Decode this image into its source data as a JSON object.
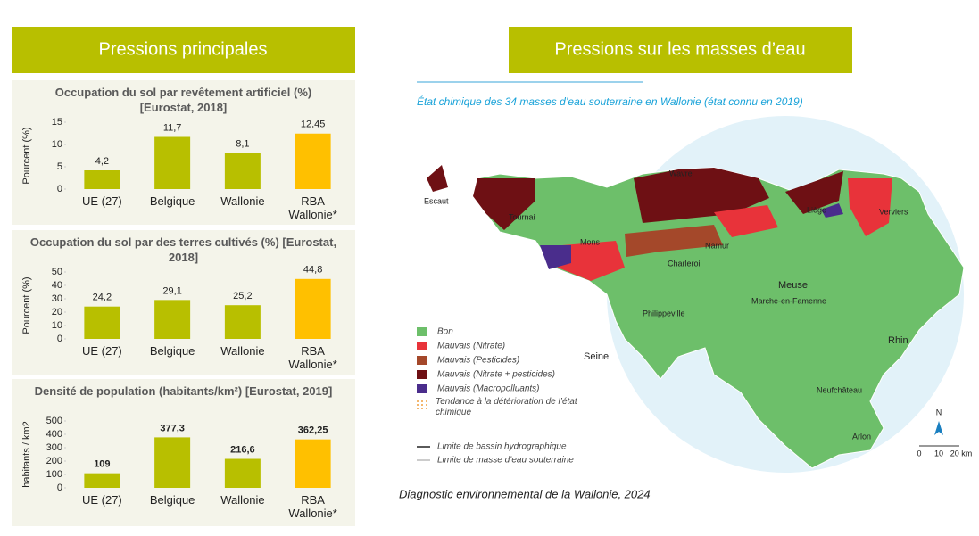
{
  "left_header": "Pressions principales",
  "right_header": "Pressions sur les masses d’eau",
  "chart_data": [
    {
      "type": "bar",
      "title": "Occupation du sol par revêtement artificiel (%) [Eurostat, 2018]",
      "y_label": "Pourcent (%)",
      "categories": [
        "UE (27)",
        "Belgique",
        "Wallonie",
        "RBA Wallonie*"
      ],
      "values": [
        4.2,
        11.7,
        8.1,
        12.45
      ],
      "value_labels": [
        "4,2",
        "11,7",
        "8,1",
        "12,45"
      ],
      "colors": [
        "#b8bf00",
        "#b8bf00",
        "#b8bf00",
        "#ffc000"
      ],
      "ylim": [
        0,
        15
      ],
      "yticks": [
        0,
        5,
        10,
        15
      ]
    },
    {
      "type": "bar",
      "title": "Occupation du sol par des terres cultivés (%) [Eurostat, 2018]",
      "y_label": "Pourcent (%)",
      "categories": [
        "UE (27)",
        "Belgique",
        "Wallonie",
        "RBA Wallonie*"
      ],
      "values": [
        24.2,
        29.1,
        25.2,
        44.8
      ],
      "value_labels": [
        "24,2",
        "29,1",
        "25,2",
        "44,8"
      ],
      "colors": [
        "#b8bf00",
        "#b8bf00",
        "#b8bf00",
        "#ffc000"
      ],
      "ylim": [
        0,
        50
      ],
      "yticks": [
        0,
        10,
        20,
        30,
        40,
        50
      ]
    },
    {
      "type": "bar",
      "title": "Densité de population (habitants/km²) [Eurostat, 2019]",
      "y_label": "habitants / km2",
      "categories": [
        "UE (27)",
        "Belgique",
        "Wallonie",
        "RBA Wallonie*"
      ],
      "values": [
        109,
        377.3,
        216.6,
        362.25
      ],
      "value_labels": [
        "109",
        "377,3",
        "216,6",
        "362,25"
      ],
      "colors": [
        "#b8bf00",
        "#b8bf00",
        "#b8bf00",
        "#ffc000"
      ],
      "ylim": [
        0,
        500
      ],
      "yticks": [
        0,
        100,
        200,
        300,
        400,
        500
      ]
    }
  ],
  "map": {
    "title": "État chimique des 34 masses d’eau souterraine en Wallonie (état connu en 2019)",
    "labels": [
      "Escaut",
      "Tournai",
      "Wavre",
      "Liège",
      "Verviers",
      "Mons",
      "Namur",
      "Charleroi",
      "Meuse",
      "Marche-en-Famenne",
      "Philippeville",
      "Seine",
      "Rhin",
      "Neufchâteau",
      "Arlon"
    ],
    "legend": [
      {
        "label": "Bon",
        "color": "#6dbf6a"
      },
      {
        "label": "Mauvais (Nitrate)",
        "color": "#e8333a"
      },
      {
        "label": "Mauvais (Pesticides)",
        "color": "#a4482a"
      },
      {
        "label": "Mauvais (Nitrate + pesticides)",
        "color": "#6e1014"
      },
      {
        "label": "Mauvais (Macropolluants)",
        "color": "#4a2d8c"
      },
      {
        "label": "Tendance à la détérioration de l’état chimique",
        "color": "#f0a040"
      }
    ],
    "boundaries": [
      "Limite de bassin hydrographique",
      "Limite de masse d’eau souterraine"
    ],
    "north": "N",
    "scale": [
      "0",
      "10",
      "20 km"
    ]
  },
  "caption": "Diagnostic environnemental de la Wallonie, 2024"
}
